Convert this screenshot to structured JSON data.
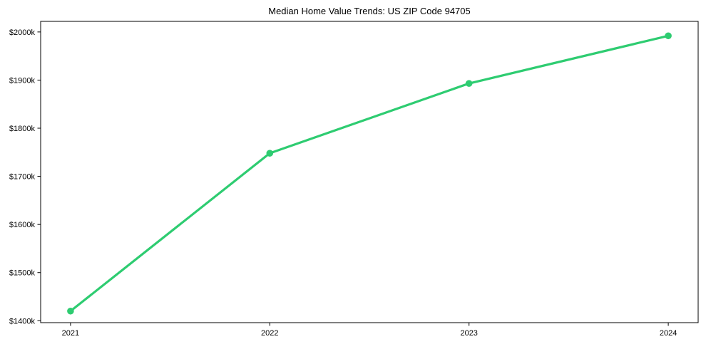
{
  "chart_data": {
    "type": "line",
    "title": "Median Home Value Trends: US ZIP Code 94705",
    "x": [
      "2021",
      "2022",
      "2023",
      "2024"
    ],
    "values": [
      1420,
      1748,
      1893,
      1992
    ],
    "values_unit": "thousand USD",
    "y_ticks": [
      1400,
      1500,
      1600,
      1700,
      1800,
      1900,
      2000
    ],
    "y_tick_labels": [
      "$1400k",
      "$1500k",
      "$1600k",
      "$1700k",
      "$1800k",
      "$1900k",
      "$2000k"
    ],
    "xlabel": "",
    "ylabel": "",
    "ylim": [
      1396,
      2022
    ],
    "x_margin": 0.15,
    "grid": false,
    "legend_position": "none",
    "line_color": "#2ecc71",
    "marker": "circle",
    "axis_color": "#000000",
    "text_color": "#000000",
    "background": "#ffffff"
  }
}
